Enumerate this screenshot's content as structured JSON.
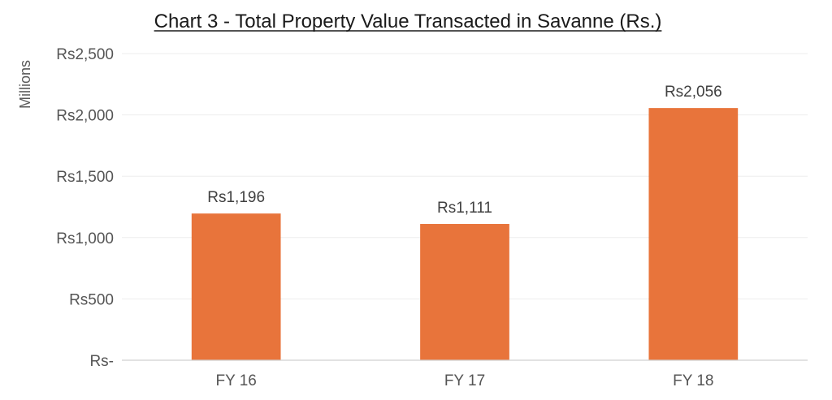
{
  "chart_data": {
    "type": "bar",
    "title": "Chart 3 - Total Property Value Transacted in Savanne (Rs.)",
    "xlabel": "",
    "ylabel": "Millions",
    "categories": [
      "FY 16",
      "FY 17",
      "FY 18"
    ],
    "values": [
      1196,
      1111,
      2056
    ],
    "data_labels": [
      "Rs1,196",
      "Rs1,111",
      "Rs2,056"
    ],
    "ylim": [
      0,
      2500
    ],
    "y_ticks": [
      0,
      500,
      1000,
      1500,
      2000,
      2500
    ],
    "y_tick_labels": [
      "Rs-",
      "Rs500",
      "Rs1,000",
      "Rs1,500",
      "Rs2,000",
      "Rs2,500"
    ],
    "grid": true,
    "legend": "none",
    "colors": {
      "bar": "#e8743b"
    }
  }
}
